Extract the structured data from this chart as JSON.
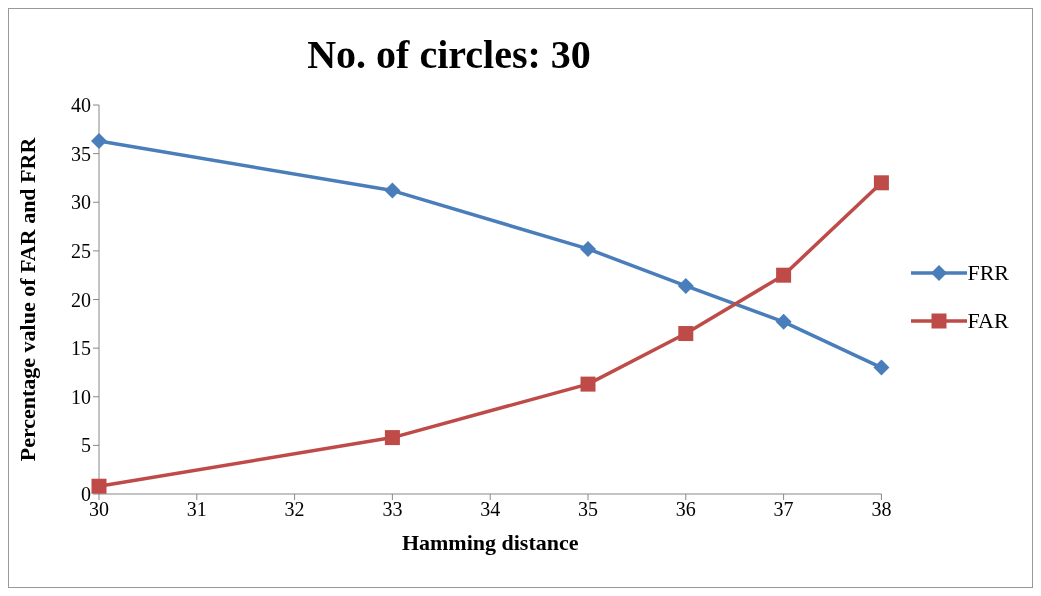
{
  "chart_data": {
    "type": "line",
    "title": "No. of circles: 30",
    "xlabel": "Hamming distance",
    "ylabel": "Percentage value of FAR and FRR",
    "x": [
      30,
      33,
      35,
      36,
      37,
      38
    ],
    "series": [
      {
        "name": "FRR",
        "color": "#4a7ebb",
        "marker": "diamond",
        "values": [
          36.3,
          31.2,
          25.2,
          21.4,
          17.7,
          13.0
        ]
      },
      {
        "name": "FAR",
        "color": "#be4b48",
        "marker": "square",
        "values": [
          0.8,
          5.8,
          11.3,
          16.5,
          22.5,
          32.0
        ]
      }
    ],
    "xlim": [
      30,
      38
    ],
    "xticks": [
      30,
      31,
      32,
      33,
      34,
      35,
      36,
      37,
      38
    ],
    "ylim": [
      0,
      40
    ],
    "yticks": [
      0,
      5,
      10,
      15,
      20,
      25,
      30,
      35,
      40
    ],
    "grid": false,
    "legend": "right"
  }
}
